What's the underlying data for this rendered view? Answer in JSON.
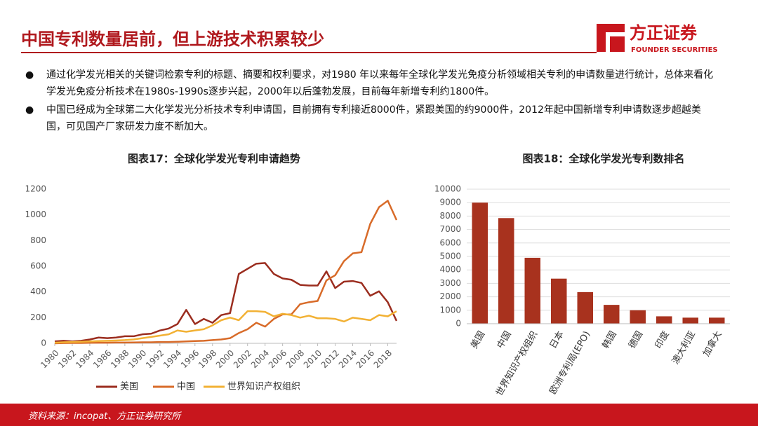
{
  "header": {
    "title": "中国专利数量居前，但上游技术积累较少",
    "logo_cn": "方正证券",
    "logo_en": "FOUNDER SECURITIES"
  },
  "bullets": [
    "通过化学发光相关的关键词检索专利的标题、摘要和权利要求，对1980 年以来每年全球化学发光免疫分析领域相关专利的申请数量进行统计，总体来看化学发光免疫分析技术在1980s-1990s逐步兴起，2000年以后蓬勃发展，目前每年新增专利约1800件。",
    "中国已经成为全球第二大化学发光分析技术专利申请国，目前拥有专利接近8000件，紧跟美国的约9000件，2012年起中国新增专利申请数逐步超越美国，可见国产厂家研发力度不断加大。"
  ],
  "footer": "资料来源：incopat、方正证券研究所",
  "chart_data": [
    {
      "type": "line",
      "title": "图表17：全球化学发光专利申请趋势",
      "x": [
        1980,
        1981,
        1982,
        1983,
        1984,
        1985,
        1986,
        1987,
        1988,
        1989,
        1990,
        1991,
        1992,
        1993,
        1994,
        1995,
        1996,
        1997,
        1998,
        1999,
        2000,
        2001,
        2002,
        2003,
        2004,
        2005,
        2006,
        2007,
        2008,
        2009,
        2010,
        2011,
        2012,
        2013,
        2014,
        2015,
        2016,
        2017,
        2018,
        2019
      ],
      "xlim": [
        1980,
        2019
      ],
      "xticks": [
        1980,
        1982,
        1984,
        1986,
        1988,
        1990,
        1992,
        1994,
        1996,
        1998,
        2000,
        2002,
        2004,
        2006,
        2008,
        2010,
        2012,
        2014,
        2016,
        2018
      ],
      "ylim": [
        0,
        1200
      ],
      "yticks": [
        0,
        200,
        400,
        600,
        800,
        1000,
        1200
      ],
      "grid": false,
      "legend": "bottom",
      "series": [
        {
          "name": "美国",
          "color": "#9b2d1f",
          "values": [
            15,
            20,
            15,
            20,
            30,
            45,
            40,
            45,
            55,
            55,
            70,
            75,
            100,
            115,
            150,
            260,
            150,
            190,
            160,
            220,
            235,
            540,
            580,
            620,
            625,
            540,
            505,
            495,
            455,
            450,
            450,
            560,
            430,
            480,
            485,
            470,
            370,
            405,
            320,
            175
          ]
        },
        {
          "name": "中国",
          "color": "#d86b29",
          "values": [
            0,
            2,
            3,
            3,
            4,
            5,
            5,
            6,
            6,
            7,
            8,
            8,
            10,
            10,
            12,
            15,
            18,
            20,
            25,
            30,
            40,
            80,
            110,
            160,
            130,
            190,
            225,
            225,
            305,
            320,
            330,
            490,
            530,
            640,
            700,
            710,
            930,
            1060,
            1110,
            960
          ]
        },
        {
          "name": "世界知识产权组织",
          "color": "#f2b134",
          "values": [
            5,
            8,
            10,
            12,
            15,
            18,
            20,
            22,
            25,
            30,
            40,
            50,
            60,
            70,
            100,
            90,
            100,
            110,
            140,
            180,
            200,
            180,
            250,
            250,
            245,
            210,
            230,
            220,
            200,
            215,
            195,
            195,
            190,
            170,
            200,
            190,
            180,
            220,
            210,
            250
          ]
        }
      ]
    },
    {
      "type": "bar",
      "title": "图表18：全球化学发光专利数排名",
      "categories": [
        "美国",
        "中国",
        "世界知识产权组织",
        "日本",
        "欧洲专利局(EPO)",
        "韩国",
        "德国",
        "印度",
        "澳大利亚",
        "加拿大"
      ],
      "values": [
        9000,
        7850,
        4900,
        3350,
        2350,
        1400,
        1000,
        550,
        450,
        450
      ],
      "color": "#a8321e",
      "ylim": [
        0,
        10000
      ],
      "yticks": [
        0,
        1000,
        2000,
        3000,
        4000,
        5000,
        6000,
        7000,
        8000,
        9000,
        10000
      ],
      "grid": true
    }
  ]
}
